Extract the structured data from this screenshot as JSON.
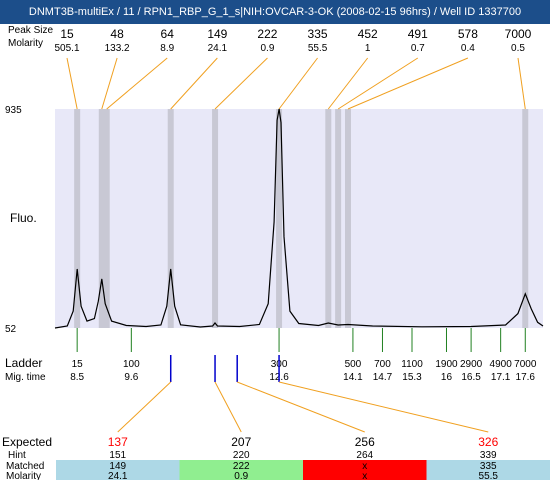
{
  "window_title": "DNMT3B-multiEx / 11 / RPN1_RBP_G_1_s|NIH:OVCAR-3-OK (2008-02-15 96hrs) / Well ID 1337700",
  "labels": {
    "peak_size": "Peak Size",
    "molarity": "Molarity",
    "fluo": "Fluo.",
    "ladder": "Ladder",
    "mig_time": "Mig. time",
    "expected": "Expected",
    "hint": "Hint",
    "matched": "Matched",
    "molarity_bottom": "Molarity"
  },
  "colors": {
    "plot_bg": "#e8e8f8",
    "band": "#c8c8d4",
    "connector": "#f0a020",
    "ladder_tick": "#208020",
    "mig_tick": "#0000cc",
    "expected_highlight": "#ff0000",
    "cell_blue": "#add8e6",
    "cell_green": "#90ee90",
    "cell_red": "#ff0000"
  },
  "chart_data": {
    "type": "line",
    "y_axis": {
      "max_label": "935",
      "min_label": "52",
      "ylim": [
        52,
        935
      ]
    },
    "peaks": [
      {
        "size": "15",
        "molarity": "505.1",
        "mig_time": 8.5
      },
      {
        "size": "48",
        "molarity": "133.2",
        "mig_time": 9.0
      },
      {
        "size": "64",
        "molarity": "8.9",
        "mig_time": 9.1
      },
      {
        "size": "149",
        "molarity": "24.1",
        "mig_time": 10.4
      },
      {
        "size": "222",
        "molarity": "0.9",
        "mig_time": 11.3
      },
      {
        "size": "335",
        "molarity": "55.5",
        "mig_time": 12.6
      },
      {
        "size": "452",
        "molarity": "1",
        "mig_time": 13.6
      },
      {
        "size": "491",
        "molarity": "0.7",
        "mig_time": 13.8
      },
      {
        "size": "578",
        "molarity": "0.4",
        "mig_time": 14.0
      },
      {
        "size": "7000",
        "molarity": "0.5",
        "mig_time": 17.6
      }
    ],
    "ladder": [
      {
        "size": "15",
        "mig_time": "8.5"
      },
      {
        "size": "100",
        "mig_time": "9.6"
      },
      {
        "size": "300",
        "mig_time": "12.6"
      },
      {
        "size": "500",
        "mig_time": "14.1"
      },
      {
        "size": "700",
        "mig_time": "14.7"
      },
      {
        "size": "1100",
        "mig_time": "15.3"
      },
      {
        "size": "1900",
        "mig_time": "16"
      },
      {
        "size": "2900",
        "mig_time": "16.5"
      },
      {
        "size": "4900",
        "mig_time": "17.1"
      },
      {
        "size": "7000",
        "mig_time": "17.6"
      }
    ],
    "trace": [
      [
        8.05,
        52
      ],
      [
        8.3,
        60
      ],
      [
        8.42,
        120
      ],
      [
        8.5,
        290
      ],
      [
        8.58,
        140
      ],
      [
        8.7,
        80
      ],
      [
        8.85,
        90
      ],
      [
        8.93,
        160
      ],
      [
        9.0,
        250
      ],
      [
        9.07,
        150
      ],
      [
        9.2,
        80
      ],
      [
        9.5,
        62
      ],
      [
        9.9,
        58
      ],
      [
        10.2,
        64
      ],
      [
        10.32,
        140
      ],
      [
        10.4,
        290
      ],
      [
        10.48,
        140
      ],
      [
        10.6,
        65
      ],
      [
        11.0,
        56
      ],
      [
        11.25,
        60
      ],
      [
        11.3,
        72
      ],
      [
        11.35,
        60
      ],
      [
        11.8,
        58
      ],
      [
        12.2,
        66
      ],
      [
        12.38,
        150
      ],
      [
        12.5,
        480
      ],
      [
        12.56,
        890
      ],
      [
        12.6,
        935
      ],
      [
        12.64,
        880
      ],
      [
        12.7,
        420
      ],
      [
        12.82,
        120
      ],
      [
        13.0,
        70
      ],
      [
        13.4,
        62
      ],
      [
        13.6,
        72
      ],
      [
        13.8,
        64
      ],
      [
        14.0,
        66
      ],
      [
        14.5,
        60
      ],
      [
        15.5,
        57
      ],
      [
        16.5,
        58
      ],
      [
        17.2,
        64
      ],
      [
        17.45,
        110
      ],
      [
        17.6,
        190
      ],
      [
        17.72,
        130
      ],
      [
        17.85,
        75
      ],
      [
        17.96,
        60
      ]
    ],
    "x_range": [
      8.05,
      17.96
    ],
    "expected": [
      {
        "expected": "137",
        "hint": "151",
        "matched": "149",
        "molarity": "24.1",
        "status": "matched",
        "mig_time": 10.4
      },
      {
        "expected": "207",
        "hint": "220",
        "matched": "222",
        "molarity": "0.9",
        "status": "good",
        "mig_time": 11.3
      },
      {
        "expected": "256",
        "hint": "264",
        "matched": "x",
        "molarity": "x",
        "status": "missing",
        "mig_time": 11.75
      },
      {
        "expected": "326",
        "hint": "339",
        "matched": "335",
        "molarity": "55.5",
        "status": "matched",
        "mig_time": 12.6
      }
    ]
  }
}
